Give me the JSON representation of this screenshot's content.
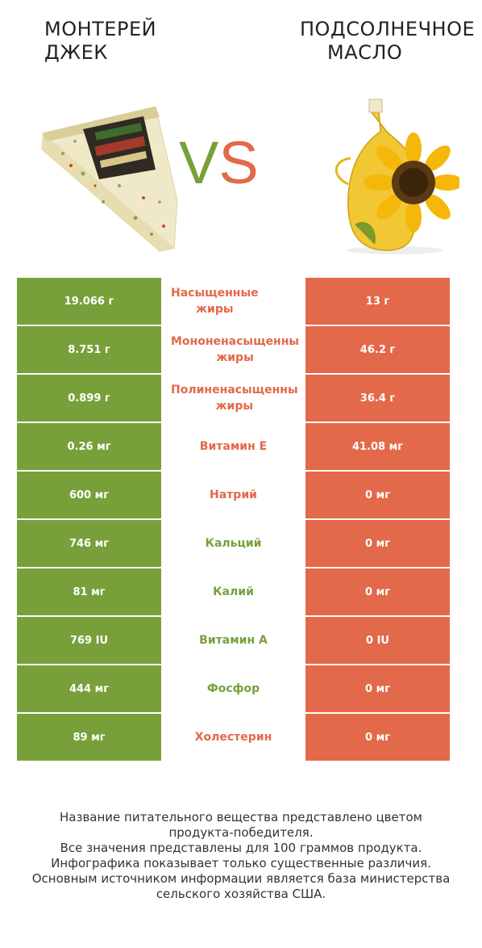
{
  "left_product": {
    "name_line1": "Монтерей",
    "name_line2": "Джек",
    "color": "#78a03a",
    "image": "jack-cheese-image"
  },
  "right_product": {
    "name_line1": "Подсолнечное",
    "name_line2": "масло",
    "color": "#e2694a",
    "image": "sunflower-oil-image"
  },
  "vs": {
    "v": "V",
    "s": "S"
  },
  "rows": [
    {
      "nutrient_l1": "Насыщенные",
      "nutrient_l2": "жиры",
      "left": "19.066 г",
      "right": "13 г",
      "winner": "right"
    },
    {
      "nutrient_l1": "Мононенасыщенны",
      "nutrient_l2": "жиры",
      "left": "8.751 г",
      "right": "46.2 г",
      "winner": "right"
    },
    {
      "nutrient_l1": "Полиненасыщенны",
      "nutrient_l2": "жиры",
      "left": "0.899 г",
      "right": "36.4 г",
      "winner": "right"
    },
    {
      "nutrient_l1": "Витамин E",
      "nutrient_l2": "",
      "left": "0.26 мг",
      "right": "41.08 мг",
      "winner": "right"
    },
    {
      "nutrient_l1": "Натрий",
      "nutrient_l2": "",
      "left": "600 мг",
      "right": "0 мг",
      "winner": "right"
    },
    {
      "nutrient_l1": "Кальций",
      "nutrient_l2": "",
      "left": "746 мг",
      "right": "0 мг",
      "winner": "left"
    },
    {
      "nutrient_l1": "Калий",
      "nutrient_l2": "",
      "left": "81 мг",
      "right": "0 мг",
      "winner": "left"
    },
    {
      "nutrient_l1": "Витамин A",
      "nutrient_l2": "",
      "left": "769 IU",
      "right": "0 IU",
      "winner": "left"
    },
    {
      "nutrient_l1": "Фосфор",
      "nutrient_l2": "",
      "left": "444 мг",
      "right": "0 мг",
      "winner": "left"
    },
    {
      "nutrient_l1": "Холестерин",
      "nutrient_l2": "",
      "left": "89 мг",
      "right": "0 мг",
      "winner": "right"
    }
  ],
  "footer": {
    "line1": "Название питательного вещества представлено цветом",
    "line2": "продукта-победителя.",
    "line3": "Все значения представлены для 100 граммов продукта.",
    "line4": "Инфографика показывает только существенные различия.",
    "line5": "Основным источником информации является база министерства",
    "line6": "сельского хозяйства США."
  }
}
